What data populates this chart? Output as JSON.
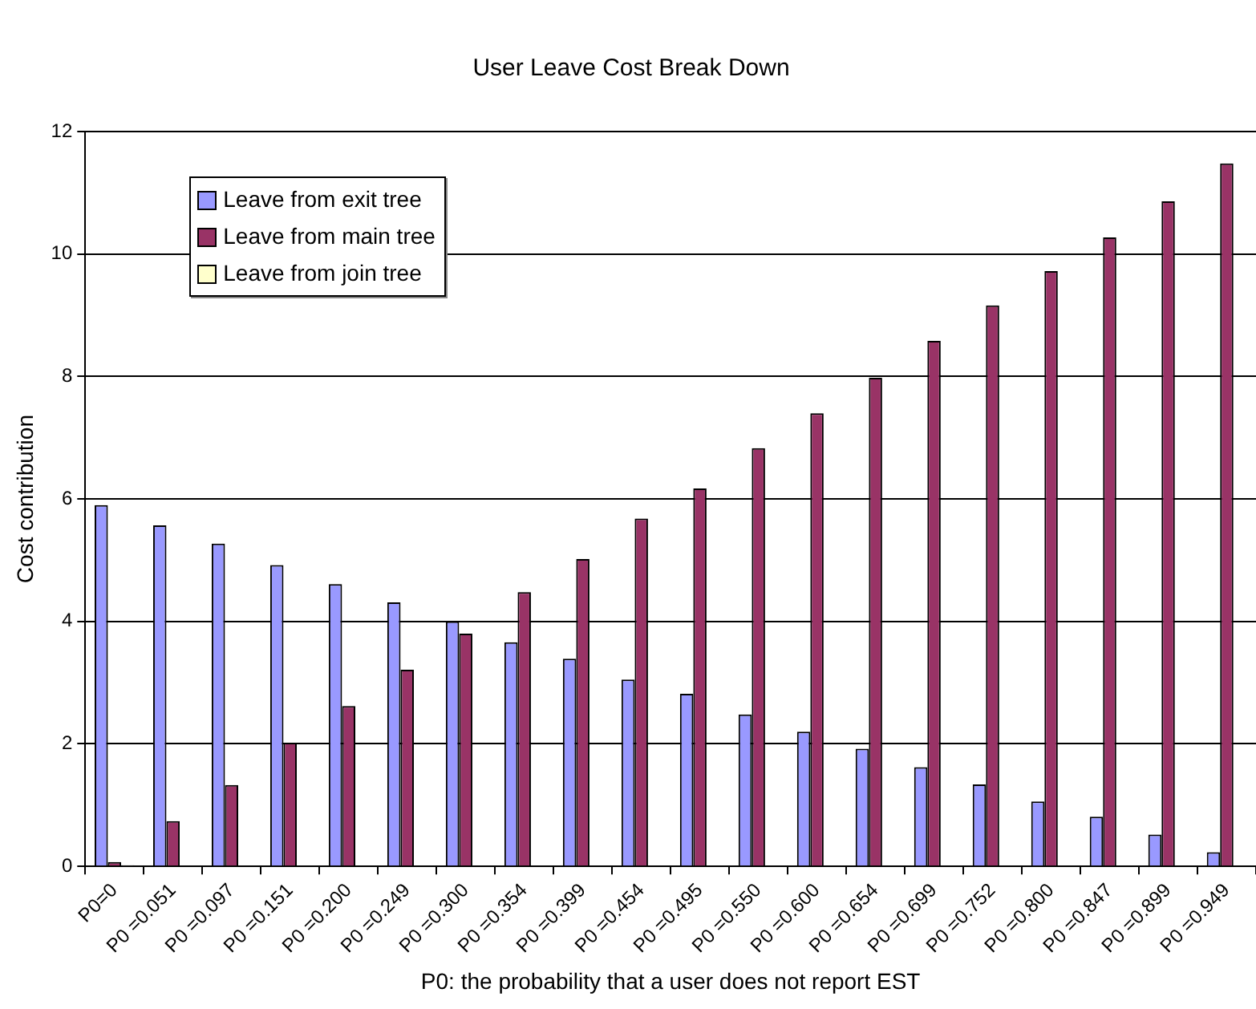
{
  "chart_data": {
    "type": "bar",
    "title": "User Leave Cost Break Down",
    "xlabel": "P0: the probability that a user does not report EST",
    "ylabel": "Cost contribution",
    "categories": [
      "P0=0",
      "P0 =0.051",
      "P0 =0.097",
      "P0 =0.151",
      "P0 =0.200",
      "P0 =0.249",
      "P0 =0.300",
      "P0 =0.354",
      "P0 =0.399",
      "P0 =0.454",
      "P0 =0.495",
      "P0 =0.550",
      "P0 =0.600",
      "P0 =0.654",
      "P0 =0.699",
      "P0 =0.752",
      "P0 =0.800",
      "P0 =0.847",
      "P0 =0.899",
      "P0 =0.949"
    ],
    "series": [
      {
        "name": "Leave from exit tree",
        "color": "#9999ff",
        "values": [
          5.9,
          5.57,
          5.27,
          4.92,
          4.61,
          4.31,
          4.0,
          3.66,
          3.39,
          3.05,
          2.82,
          2.48,
          2.2,
          1.92,
          1.62,
          1.34,
          1.06,
          0.81,
          0.52,
          0.23
        ]
      },
      {
        "name": "Leave from main tree",
        "color": "#993366",
        "values": [
          0.07,
          0.74,
          1.33,
          2.02,
          2.62,
          3.21,
          3.8,
          4.48,
          5.02,
          5.68,
          6.17,
          6.83,
          7.4,
          7.98,
          8.58,
          9.16,
          9.72,
          10.27,
          10.86,
          11.48
        ]
      },
      {
        "name": "Leave from join tree",
        "color": "#ffffcc",
        "values": [
          0.02,
          0,
          0,
          0,
          0,
          0,
          0,
          0,
          0,
          0,
          0,
          0,
          0,
          0,
          0,
          0,
          0,
          0,
          0,
          0
        ]
      }
    ],
    "ylim": [
      0,
      12
    ],
    "yticks": [
      0,
      2,
      4,
      6,
      8,
      10,
      12
    ],
    "grid": "y",
    "legend": "top left"
  }
}
